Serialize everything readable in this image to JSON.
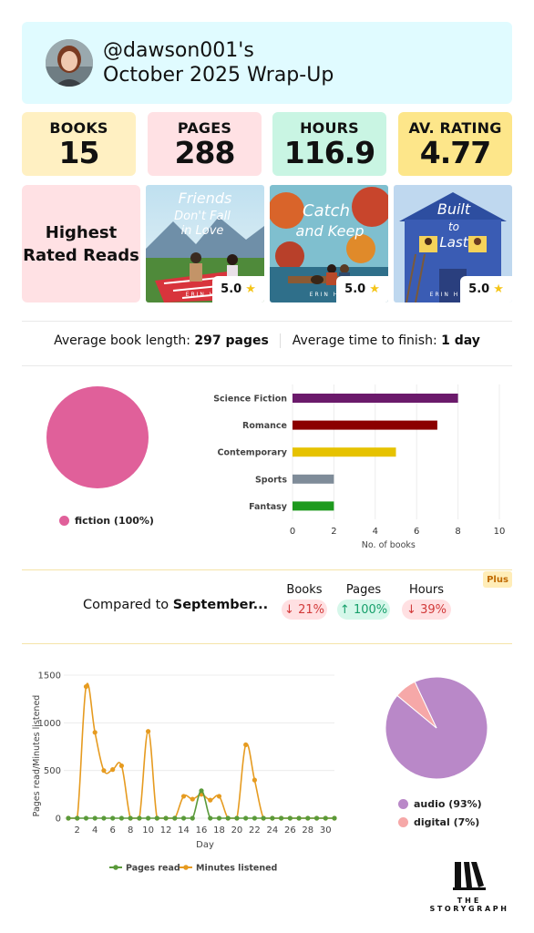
{
  "header": {
    "handle": "@dawson001's",
    "period": "October 2025 Wrap-Up"
  },
  "stats": [
    {
      "label": "BOOKS",
      "value": "15",
      "color": "#fff0c2"
    },
    {
      "label": "PAGES",
      "value": "288",
      "color": "#ffe1e4"
    },
    {
      "label": "HOURS",
      "value": "116.9",
      "color": "#c9f5e3"
    },
    {
      "label": "AV. RATING",
      "value": "4.77",
      "color": "#fde68a"
    }
  ],
  "highest_rated": {
    "label": "Highest Rated Reads",
    "books": [
      {
        "title_line1": "Friends",
        "title_line2": "Don't Fall",
        "title_line3": "in Love",
        "author": "ERIN H",
        "rating": "5.0"
      },
      {
        "title_line1": "Catch",
        "title_line2": "and Keep",
        "author": "ERIN H",
        "rating": "5.0"
      },
      {
        "title_line1": "Built",
        "title_line2": "to",
        "title_line3": "Last",
        "author": "ERIN H",
        "rating": "5.0"
      }
    ]
  },
  "averages": {
    "length_label": "Average book length:",
    "length_value": "297 pages",
    "time_label": "Average time to finish:",
    "time_value": "1 day"
  },
  "fiction_pie": {
    "legend": "fiction (100%)",
    "color": "#e0609a"
  },
  "genre_chart": {
    "xlabel": "No. of books",
    "xticks": [
      "0",
      "2",
      "4",
      "6",
      "8",
      "10"
    ],
    "xlim": [
      0,
      10
    ]
  },
  "comparison": {
    "label": "Compared to",
    "month": "September...",
    "plus_badge": "Plus",
    "items": [
      {
        "heading": "Books",
        "direction": "down",
        "arrow": "↓",
        "value": "21%"
      },
      {
        "heading": "Pages",
        "direction": "up",
        "arrow": "↑",
        "value": "100%"
      },
      {
        "heading": "Hours",
        "direction": "down",
        "arrow": "↓",
        "value": "39%"
      }
    ]
  },
  "daily_chart": {
    "ylabel": "Pages read/Minutes listened",
    "xlabel": "Day",
    "yticks": [
      "0",
      "500",
      "1000",
      "1500"
    ],
    "xticks": [
      "2",
      "4",
      "6",
      "8",
      "10",
      "12",
      "14",
      "16",
      "18",
      "20",
      "22",
      "24",
      "26",
      "28",
      "30"
    ],
    "legend_pages": "Pages read",
    "legend_minutes": "Minutes listened"
  },
  "format_pie": {
    "audio_label": "audio (93%)",
    "digital_label": "digital (7%)",
    "audio_color": "#b988c8",
    "digital_color": "#f6a8a8"
  },
  "logo": {
    "line1": "THE",
    "line2": "STORYGRAPH"
  },
  "chart_data": [
    {
      "type": "pie",
      "labels": [
        "fiction"
      ],
      "values": [
        100
      ]
    },
    {
      "type": "bar",
      "orientation": "horizontal",
      "categories": [
        "Science Fiction",
        "Romance",
        "Contemporary",
        "Sports",
        "Fantasy"
      ],
      "values": [
        8,
        7,
        5,
        2,
        2
      ],
      "colors": [
        "#6b1a6b",
        "#8b0000",
        "#e6c200",
        "#7f8c99",
        "#1e9a1e"
      ],
      "xlabel": "No. of books",
      "xlim": [
        0,
        10
      ],
      "grid": true
    },
    {
      "type": "line",
      "x": [
        1,
        2,
        3,
        4,
        5,
        6,
        7,
        8,
        9,
        10,
        11,
        12,
        13,
        14,
        15,
        16,
        17,
        18,
        19,
        20,
        21,
        22,
        23,
        24,
        25,
        26,
        27,
        28,
        29,
        30,
        31
      ],
      "series": [
        {
          "name": "Pages read",
          "color": "#5a9a3a",
          "values": [
            0,
            0,
            0,
            0,
            0,
            0,
            0,
            0,
            0,
            0,
            0,
            0,
            0,
            0,
            0,
            288,
            0,
            0,
            0,
            0,
            0,
            0,
            0,
            0,
            0,
            0,
            0,
            0,
            0,
            0,
            0
          ]
        },
        {
          "name": "Minutes listened",
          "color": "#e69b20",
          "values": [
            0,
            0,
            1380,
            900,
            500,
            510,
            550,
            0,
            0,
            910,
            0,
            0,
            0,
            230,
            200,
            250,
            190,
            230,
            0,
            0,
            770,
            400,
            0,
            0,
            0,
            0,
            0,
            0,
            0,
            0,
            0
          ]
        }
      ],
      "xlabel": "Day",
      "ylabel": "Pages read/Minutes listened",
      "ylim": [
        0,
        1500
      ],
      "grid": true,
      "legend": "bottom"
    },
    {
      "type": "pie",
      "labels": [
        "audio",
        "digital"
      ],
      "values": [
        93,
        7
      ]
    }
  ]
}
